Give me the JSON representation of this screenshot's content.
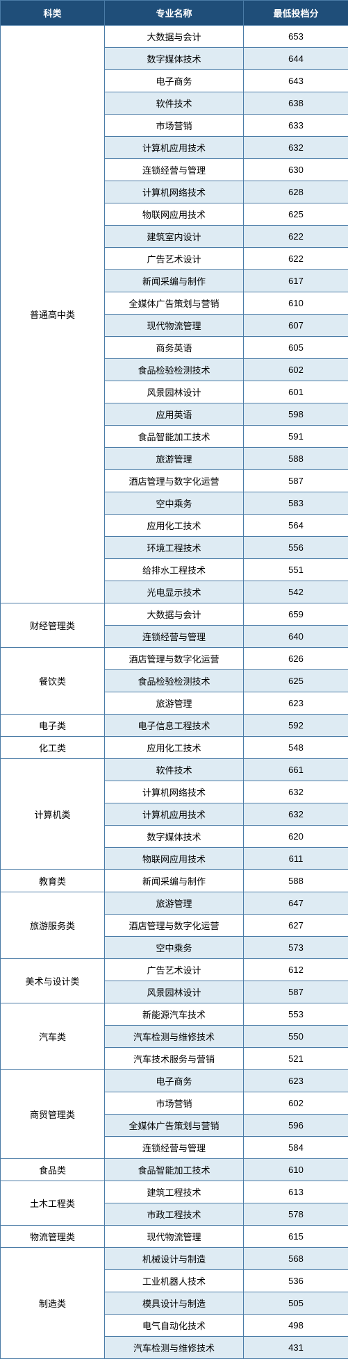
{
  "headers": {
    "category": "科类",
    "major": "专业名称",
    "score": "最低投档分"
  },
  "groups": [
    {
      "category": "普通高中类",
      "rows": [
        {
          "major": "大数据与会计",
          "score": 653
        },
        {
          "major": "数字媒体技术",
          "score": 644
        },
        {
          "major": "电子商务",
          "score": 643
        },
        {
          "major": "软件技术",
          "score": 638
        },
        {
          "major": "市场营销",
          "score": 633
        },
        {
          "major": "计算机应用技术",
          "score": 632
        },
        {
          "major": "连锁经营与管理",
          "score": 630
        },
        {
          "major": "计算机网络技术",
          "score": 628
        },
        {
          "major": "物联网应用技术",
          "score": 625
        },
        {
          "major": "建筑室内设计",
          "score": 622
        },
        {
          "major": "广告艺术设计",
          "score": 622
        },
        {
          "major": "新闻采编与制作",
          "score": 617
        },
        {
          "major": "全媒体广告策划与营销",
          "score": 610
        },
        {
          "major": "现代物流管理",
          "score": 607
        },
        {
          "major": "商务英语",
          "score": 605
        },
        {
          "major": "食品检验检测技术",
          "score": 602
        },
        {
          "major": "风景园林设计",
          "score": 601
        },
        {
          "major": "应用英语",
          "score": 598
        },
        {
          "major": "食品智能加工技术",
          "score": 591
        },
        {
          "major": "旅游管理",
          "score": 588
        },
        {
          "major": "酒店管理与数字化运营",
          "score": 587
        },
        {
          "major": "空中乘务",
          "score": 583
        },
        {
          "major": "应用化工技术",
          "score": 564
        },
        {
          "major": "环境工程技术",
          "score": 556
        },
        {
          "major": "给排水工程技术",
          "score": 551
        },
        {
          "major": "光电显示技术",
          "score": 542
        }
      ]
    },
    {
      "category": "财经管理类",
      "rows": [
        {
          "major": "大数据与会计",
          "score": 659
        },
        {
          "major": "连锁经营与管理",
          "score": 640
        }
      ]
    },
    {
      "category": "餐饮类",
      "rows": [
        {
          "major": "酒店管理与数字化运营",
          "score": 626
        },
        {
          "major": "食品检验检测技术",
          "score": 625
        },
        {
          "major": "旅游管理",
          "score": 623
        }
      ]
    },
    {
      "category": "电子类",
      "rows": [
        {
          "major": "电子信息工程技术",
          "score": 592
        }
      ]
    },
    {
      "category": "化工类",
      "rows": [
        {
          "major": "应用化工技术",
          "score": 548
        }
      ]
    },
    {
      "category": "计算机类",
      "rows": [
        {
          "major": "软件技术",
          "score": 661
        },
        {
          "major": "计算机网络技术",
          "score": 632
        },
        {
          "major": "计算机应用技术",
          "score": 632
        },
        {
          "major": "数字媒体技术",
          "score": 620
        },
        {
          "major": "物联网应用技术",
          "score": 611
        }
      ]
    },
    {
      "category": "教育类",
      "rows": [
        {
          "major": "新闻采编与制作",
          "score": 588
        }
      ]
    },
    {
      "category": "旅游服务类",
      "rows": [
        {
          "major": "旅游管理",
          "score": 647
        },
        {
          "major": "酒店管理与数字化运营",
          "score": 627
        },
        {
          "major": "空中乘务",
          "score": 573
        }
      ]
    },
    {
      "category": "美术与设计类",
      "rows": [
        {
          "major": "广告艺术设计",
          "score": 612
        },
        {
          "major": "风景园林设计",
          "score": 587
        }
      ]
    },
    {
      "category": "汽车类",
      "rows": [
        {
          "major": "新能源汽车技术",
          "score": 553
        },
        {
          "major": "汽车检测与维修技术",
          "score": 550
        },
        {
          "major": "汽车技术服务与营销",
          "score": 521
        }
      ]
    },
    {
      "category": "商贸管理类",
      "rows": [
        {
          "major": "电子商务",
          "score": 623
        },
        {
          "major": "市场营销",
          "score": 602
        },
        {
          "major": "全媒体广告策划与营销",
          "score": 596
        },
        {
          "major": "连锁经营与管理",
          "score": 584
        }
      ]
    },
    {
      "category": "食品类",
      "rows": [
        {
          "major": "食品智能加工技术",
          "score": 610
        }
      ]
    },
    {
      "category": "土木工程类",
      "rows": [
        {
          "major": "建筑工程技术",
          "score": 613
        },
        {
          "major": "市政工程技术",
          "score": 578
        }
      ]
    },
    {
      "category": "物流管理类",
      "rows": [
        {
          "major": "现代物流管理",
          "score": 615
        }
      ]
    },
    {
      "category": "制造类",
      "rows": [
        {
          "major": "机械设计与制造",
          "score": 568
        },
        {
          "major": "工业机器人技术",
          "score": 536
        },
        {
          "major": "模具设计与制造",
          "score": 505
        },
        {
          "major": "电气自动化技术",
          "score": 498
        },
        {
          "major": "汽车检测与维修技术",
          "score": 431
        }
      ]
    }
  ]
}
